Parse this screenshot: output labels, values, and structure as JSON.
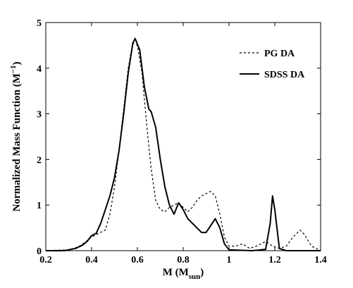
{
  "chart_data": {
    "type": "line",
    "title": "",
    "xlabel_main": "M (M",
    "xlabel_sub": "sun",
    "xlabel_close": ")",
    "ylabel_main": "Normalized Mass Function (M",
    "ylabel_sup": "−1",
    "ylabel_close": ")",
    "xlim": [
      0.2,
      1.4
    ],
    "ylim": [
      0,
      5
    ],
    "xticks": [
      0.2,
      0.4,
      0.6,
      0.8,
      1.0,
      1.2,
      1.4
    ],
    "xtick_labels": [
      "0.2",
      "0.4",
      "0.6",
      "0.8",
      "1",
      "1.2",
      "1.4"
    ],
    "yticks": [
      0,
      1,
      2,
      3,
      4,
      5
    ],
    "ytick_labels": [
      "0",
      "1",
      "2",
      "3",
      "4",
      "5"
    ],
    "grid": false,
    "legend_position": "top-right",
    "series": [
      {
        "name": "PG DA",
        "style": "dashed",
        "color": "#000000",
        "points": [
          [
            0.2,
            0.0
          ],
          [
            0.3,
            0.02
          ],
          [
            0.34,
            0.08
          ],
          [
            0.37,
            0.18
          ],
          [
            0.4,
            0.3
          ],
          [
            0.43,
            0.38
          ],
          [
            0.46,
            0.45
          ],
          [
            0.48,
            0.8
          ],
          [
            0.5,
            1.4
          ],
          [
            0.52,
            2.2
          ],
          [
            0.54,
            3.1
          ],
          [
            0.56,
            4.0
          ],
          [
            0.58,
            4.55
          ],
          [
            0.6,
            4.5
          ],
          [
            0.62,
            3.9
          ],
          [
            0.64,
            2.8
          ],
          [
            0.66,
            1.8
          ],
          [
            0.68,
            1.1
          ],
          [
            0.7,
            0.9
          ],
          [
            0.72,
            0.85
          ],
          [
            0.74,
            0.95
          ],
          [
            0.76,
            1.0
          ],
          [
            0.78,
            1.05
          ],
          [
            0.8,
            0.95
          ],
          [
            0.82,
            0.85
          ],
          [
            0.84,
            0.95
          ],
          [
            0.86,
            1.1
          ],
          [
            0.88,
            1.2
          ],
          [
            0.9,
            1.25
          ],
          [
            0.92,
            1.3
          ],
          [
            0.94,
            1.2
          ],
          [
            0.96,
            0.8
          ],
          [
            0.98,
            0.3
          ],
          [
            1.0,
            0.1
          ],
          [
            1.03,
            0.1
          ],
          [
            1.06,
            0.15
          ],
          [
            1.09,
            0.05
          ],
          [
            1.12,
            0.1
          ],
          [
            1.16,
            0.2
          ],
          [
            1.19,
            0.1
          ],
          [
            1.22,
            0.05
          ],
          [
            1.25,
            0.1
          ],
          [
            1.28,
            0.3
          ],
          [
            1.31,
            0.45
          ],
          [
            1.33,
            0.35
          ],
          [
            1.36,
            0.1
          ],
          [
            1.4,
            0.0
          ]
        ]
      },
      {
        "name": "SDSS DA",
        "style": "solid",
        "color": "#000000",
        "points": [
          [
            0.2,
            0.0
          ],
          [
            0.28,
            0.0
          ],
          [
            0.33,
            0.05
          ],
          [
            0.36,
            0.12
          ],
          [
            0.38,
            0.2
          ],
          [
            0.4,
            0.33
          ],
          [
            0.42,
            0.38
          ],
          [
            0.44,
            0.6
          ],
          [
            0.46,
            0.9
          ],
          [
            0.48,
            1.2
          ],
          [
            0.5,
            1.6
          ],
          [
            0.52,
            2.2
          ],
          [
            0.54,
            3.0
          ],
          [
            0.56,
            3.9
          ],
          [
            0.58,
            4.55
          ],
          [
            0.59,
            4.65
          ],
          [
            0.61,
            4.4
          ],
          [
            0.63,
            3.6
          ],
          [
            0.65,
            3.1
          ],
          [
            0.66,
            3.05
          ],
          [
            0.68,
            2.7
          ],
          [
            0.7,
            2.0
          ],
          [
            0.72,
            1.4
          ],
          [
            0.74,
            1.0
          ],
          [
            0.76,
            0.8
          ],
          [
            0.78,
            1.05
          ],
          [
            0.8,
            0.9
          ],
          [
            0.82,
            0.7
          ],
          [
            0.84,
            0.6
          ],
          [
            0.86,
            0.5
          ],
          [
            0.88,
            0.4
          ],
          [
            0.9,
            0.4
          ],
          [
            0.92,
            0.55
          ],
          [
            0.94,
            0.7
          ],
          [
            0.96,
            0.5
          ],
          [
            0.98,
            0.15
          ],
          [
            1.0,
            0.02
          ],
          [
            1.1,
            0.0
          ],
          [
            1.16,
            0.03
          ],
          [
            1.18,
            0.6
          ],
          [
            1.19,
            1.2
          ],
          [
            1.2,
            0.9
          ],
          [
            1.22,
            0.05
          ],
          [
            1.25,
            0.0
          ],
          [
            1.4,
            0.0
          ]
        ]
      }
    ]
  }
}
